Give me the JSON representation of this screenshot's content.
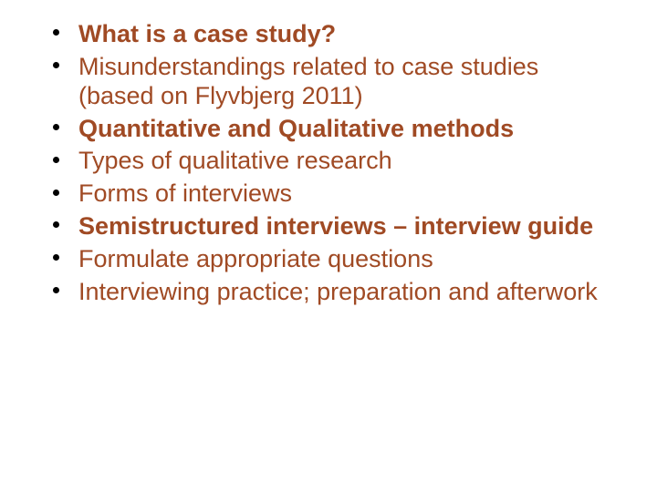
{
  "slide": {
    "background_color": "#ffffff",
    "bullet_color": "#000000",
    "text_colors": {
      "bold": "#a04a24",
      "normal": "#a04a24"
    },
    "font_family": "Arial",
    "font_size_pt": 20,
    "items": [
      {
        "text": "What is a case study?",
        "bold": true
      },
      {
        "text": "Misunderstandings related to case studies (based on Flyvbjerg 2011)",
        "bold": false
      },
      {
        "text": "Quantitative and Qualitative methods",
        "bold": true
      },
      {
        "text": "Types of qualitative research",
        "bold": false
      },
      {
        "text": "Forms of interviews",
        "bold": false
      },
      {
        "text": "Semistructured interviews – interview guide",
        "bold": true
      },
      {
        "text": "Formulate appropriate questions",
        "bold": false
      },
      {
        "text": "Interviewing practice; preparation and afterwork",
        "bold": false
      }
    ]
  }
}
